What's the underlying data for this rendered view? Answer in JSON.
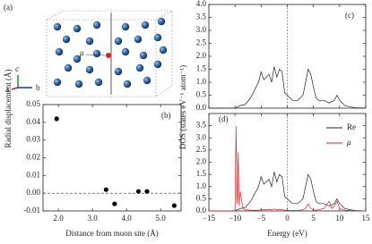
{
  "panel_a": {
    "label": "(a)",
    "muon_label": "μ",
    "axis_labels": [
      "a",
      "b",
      "c"
    ]
  },
  "chart_data": [
    {
      "type": "scatter",
      "panel_label": "(b)",
      "xlabel": "Distance from muon site (Å)",
      "ylabel": "Radial displacement (Å)",
      "x": [
        1.95,
        3.4,
        3.65,
        4.35,
        4.6,
        5.4
      ],
      "values": [
        0.042,
        0.002,
        -0.006,
        0.001,
        0.001,
        -0.007
      ],
      "color": "#000000",
      "xlim": [
        1.55,
        5.6
      ],
      "xticks": [
        {
          "value": 2,
          "label": "2.0"
        },
        {
          "value": 3,
          "label": "3.0"
        },
        {
          "value": 4,
          "label": "4.0"
        },
        {
          "value": 5,
          "label": "5.0"
        }
      ],
      "ylim": [
        -0.01,
        0.05
      ],
      "yticks": [
        {
          "value": -0.01,
          "label": "-0.01"
        },
        {
          "value": 0,
          "label": "0.00"
        },
        {
          "value": 0.01,
          "label": "0.01"
        },
        {
          "value": 0.02,
          "label": "0.02"
        },
        {
          "value": 0.03,
          "label": "0.03"
        },
        {
          "value": 0.04,
          "label": "0.04"
        },
        {
          "value": 0.05,
          "label": "0.05"
        }
      ]
    },
    {
      "type": "line",
      "panel_label": "(c)",
      "x": [
        -15,
        -10,
        -9.8,
        -9.6,
        -9.4,
        -9.2,
        -9,
        -8.5,
        -8,
        -7,
        -6,
        -5.5,
        -5,
        -4.5,
        -4,
        -3.5,
        -3,
        -2.5,
        -2,
        -1.5,
        -1,
        -0.5,
        0,
        0.5,
        1,
        2,
        3,
        3.5,
        4,
        4.5,
        5,
        5.5,
        6,
        7,
        8,
        8.5,
        9,
        9.5,
        10,
        11,
        12,
        13,
        14,
        15
      ],
      "series": [
        {
          "color": "#222222",
          "values": [
            0,
            0,
            0.02,
            0.05,
            0.05,
            0.08,
            0.1,
            0.12,
            0.15,
            0.4,
            0.8,
            1.0,
            1.4,
            1.1,
            1.2,
            1.3,
            1.0,
            1.6,
            1.2,
            1.5,
            1.4,
            0.6,
            0.5,
            0.4,
            0.3,
            0.3,
            0.5,
            1.0,
            1.5,
            1.3,
            0.8,
            0.4,
            0.3,
            0.3,
            0.2,
            0.25,
            0.3,
            0.5,
            0.3,
            0.1,
            0.05,
            0.02,
            0.01,
            0
          ]
        }
      ],
      "xlim": [
        -15,
        15
      ],
      "xticks": [
        -15,
        -10,
        -5,
        0,
        5,
        10,
        15
      ],
      "ylim": [
        0,
        4
      ],
      "yticks": [
        {
          "value": 0,
          "label": "0.0"
        },
        {
          "value": 0.5,
          "label": "0.5"
        },
        {
          "value": 1,
          "label": "1.0"
        },
        {
          "value": 1.5,
          "label": "1.5"
        },
        {
          "value": 2,
          "label": "2.0"
        },
        {
          "value": 2.5,
          "label": "2.5"
        },
        {
          "value": 3,
          "label": "3.0"
        },
        {
          "value": 3.5,
          "label": "3.5"
        },
        {
          "value": 4,
          "label": "4.0"
        }
      ]
    },
    {
      "type": "line",
      "panel_label": "(d)",
      "xlabel": "Energy (eV)",
      "ylabel": "DOS (states eV⁻¹ atom⁻¹)",
      "x": [
        -15,
        -10,
        -9.8,
        -9.6,
        -9.4,
        -9.2,
        -9,
        -8.5,
        -8,
        -7,
        -6,
        -5.5,
        -5,
        -4.5,
        -4,
        -3.5,
        -3,
        -2.5,
        -2,
        -1.5,
        -1,
        -0.5,
        0,
        0.5,
        1,
        2,
        3,
        3.5,
        4,
        4.5,
        5,
        5.5,
        6,
        7,
        8,
        8.5,
        9,
        9.5,
        10,
        11,
        12,
        13,
        14,
        15
      ],
      "series": [
        {
          "name": "Re",
          "color": "#222222",
          "values": [
            0,
            0,
            0.02,
            0.05,
            0.05,
            0.08,
            0.1,
            0.12,
            0.15,
            0.4,
            0.8,
            1.0,
            1.4,
            1.1,
            1.2,
            1.3,
            1.0,
            1.6,
            1.2,
            1.5,
            1.4,
            0.6,
            0.5,
            0.4,
            0.3,
            0.3,
            0.5,
            1.0,
            1.5,
            1.3,
            0.8,
            0.4,
            0.3,
            0.3,
            0.2,
            0.25,
            0.3,
            0.5,
            0.3,
            0.1,
            0.05,
            0.02,
            0.01,
            0
          ]
        },
        {
          "name": "μ",
          "color": "#d62728",
          "values": [
            0,
            0,
            3.5,
            0.3,
            2.4,
            0.2,
            0.8,
            0.1,
            0.05,
            0.03,
            0.03,
            0.03,
            0.05,
            0.05,
            0.05,
            0.05,
            0.05,
            0.08,
            0.05,
            0.05,
            0.05,
            0.03,
            0.03,
            0.02,
            0.02,
            0.02,
            0.05,
            0.1,
            0.3,
            0.1,
            0.05,
            0.03,
            0.05,
            0.1,
            0.4,
            0.1,
            0.2,
            0.4,
            0.1,
            0.03,
            0.02,
            0.01,
            0,
            0
          ]
        }
      ],
      "legend": "upper right",
      "xlim": [
        -15,
        15
      ],
      "xticks": [
        {
          "value": -15,
          "label": "−15"
        },
        {
          "value": -10,
          "label": "−10"
        },
        {
          "value": -5,
          "label": "−5"
        },
        0,
        5,
        10,
        15
      ],
      "ylim": [
        0,
        4
      ],
      "yticks": [
        {
          "value": 0,
          "label": "0.0"
        },
        {
          "value": 0.5,
          "label": "0.5"
        },
        {
          "value": 1,
          "label": "1.0"
        },
        {
          "value": 1.5,
          "label": "1.5"
        },
        {
          "value": 2,
          "label": "2.0"
        },
        {
          "value": 2.5,
          "label": "2.5"
        },
        {
          "value": 3,
          "label": "3.0"
        },
        {
          "value": 3.5,
          "label": "3.5"
        }
      ]
    }
  ]
}
